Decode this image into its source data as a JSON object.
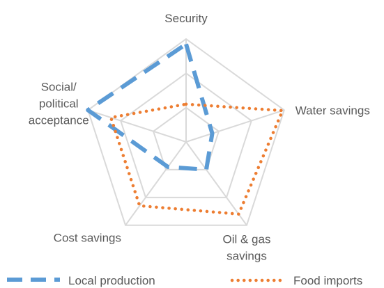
{
  "chart_data": {
    "type": "radar",
    "axes": [
      "Security",
      "Water savings",
      "Oil & gas savings",
      "Cost savings",
      "Social/ political acceptance"
    ],
    "axis_label_lines": [
      [
        "Security"
      ],
      [
        "Water savings"
      ],
      [
        "Oil & gas",
        "savings"
      ],
      [
        "Cost savings"
      ],
      [
        "Social/",
        "political",
        "acceptance"
      ]
    ],
    "rmax": 3,
    "grid_levels": [
      1,
      2,
      3
    ],
    "series": [
      {
        "name": "Local production",
        "values": [
          2.85,
          0.8,
          1.0,
          0.9,
          3.0
        ],
        "color": "#5b9bd5",
        "style": "dashed"
      },
      {
        "name": "Food imports",
        "values": [
          1.1,
          2.95,
          2.6,
          2.3,
          2.3
        ],
        "color": "#ed7d31",
        "style": "dotted"
      }
    ],
    "legend_position": "bottom"
  }
}
